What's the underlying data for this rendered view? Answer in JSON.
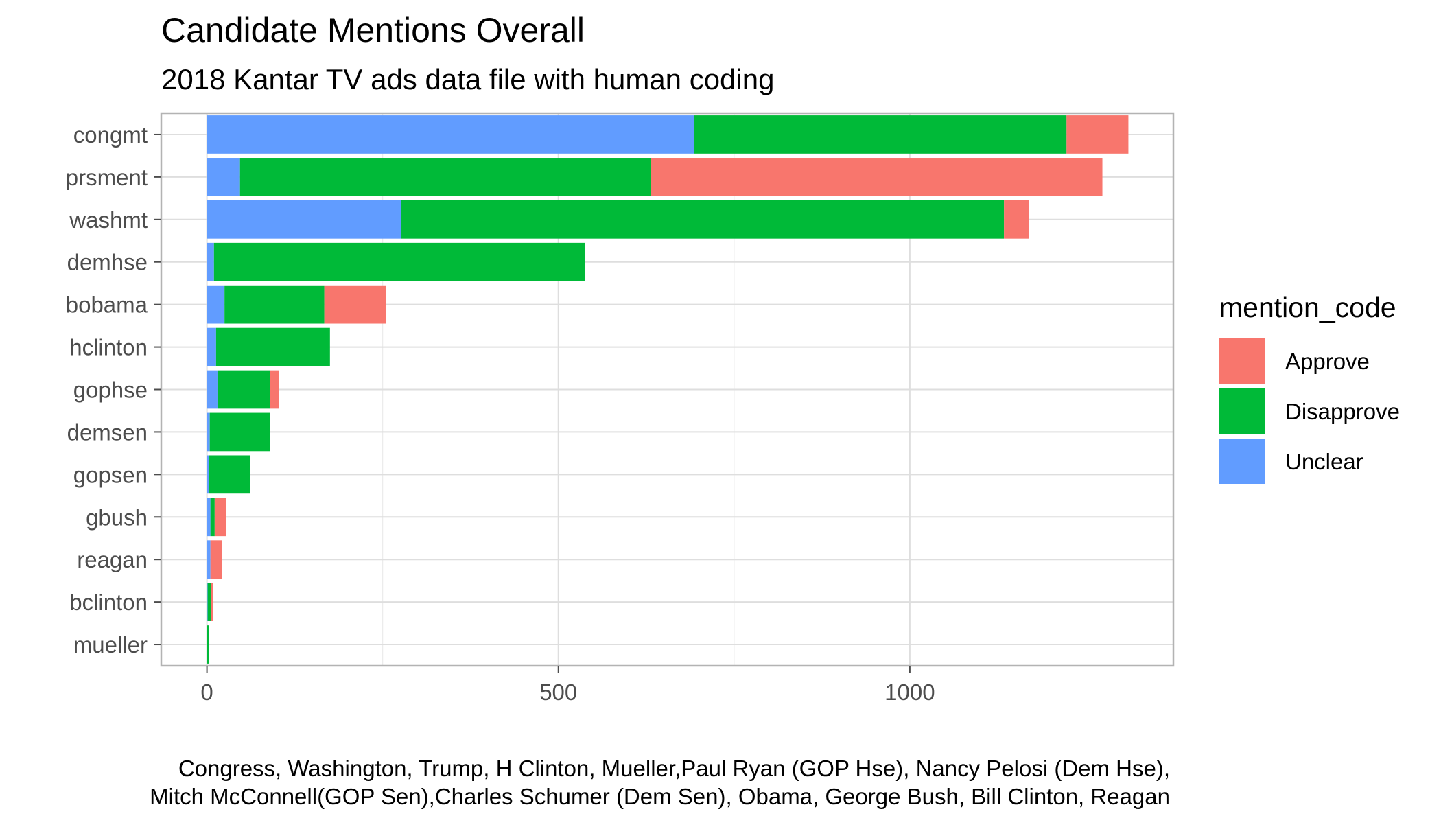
{
  "chart_data": {
    "type": "bar",
    "orientation": "horizontal",
    "stacked": true,
    "title": "Candidate Mentions Overall",
    "subtitle": "2018 Kantar TV ads data file with human coding",
    "xlabel": "",
    "ylabel": "",
    "xlim": [
      -65,
      1375
    ],
    "x_ticks": [
      0,
      500,
      1000
    ],
    "x_tick_labels": [
      "0",
      "500",
      "1000"
    ],
    "grid": true,
    "legend_title": "mention_code",
    "legend_position": "right",
    "categories": [
      "congmt",
      "prsment",
      "washmt",
      "demhse",
      "bobama",
      "hclinton",
      "gophse",
      "demsen",
      "gopsen",
      "gbush",
      "reagan",
      "bclinton",
      "mueller"
    ],
    "series": [
      {
        "name": "Unclear",
        "color": "#619CFF",
        "values": [
          693,
          47,
          276,
          10,
          25,
          13,
          15,
          4,
          3,
          5,
          5,
          1,
          0
        ]
      },
      {
        "name": "Disapprove",
        "color": "#00BA38",
        "values": [
          530,
          585,
          858,
          528,
          142,
          162,
          75,
          86,
          58,
          6,
          0,
          5,
          3
        ]
      },
      {
        "name": "Approve",
        "color": "#F8766D",
        "values": [
          88,
          642,
          35,
          0,
          88,
          0,
          12,
          0,
          0,
          16,
          16,
          3,
          0
        ]
      }
    ],
    "legend_order": [
      "Approve",
      "Disapprove",
      "Unclear"
    ],
    "caption_lines": [
      "Congress, Washington, Trump, H Clinton, Mueller,Paul Ryan (GOP Hse), Nancy Pelosi (Dem Hse),",
      "Mitch McConnell(GOP Sen),Charles Schumer (Dem Sen), Obama, George Bush, Bill Clinton, Reagan"
    ]
  }
}
